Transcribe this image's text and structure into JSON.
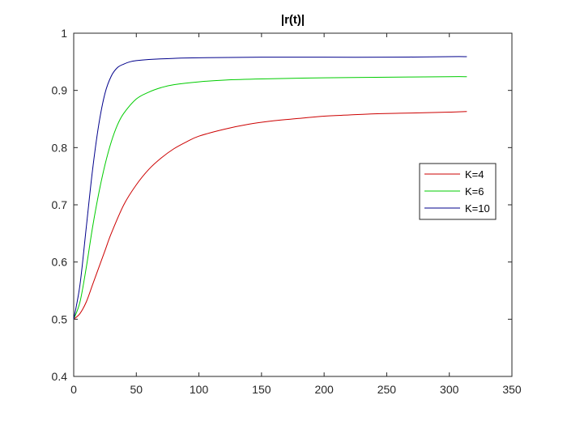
{
  "chart_data": {
    "type": "line",
    "title": "|r(t)|",
    "xlabel": "",
    "ylabel": "",
    "xlim": [
      0,
      350
    ],
    "ylim": [
      0.4,
      1
    ],
    "xticks": [
      0,
      50,
      100,
      150,
      200,
      250,
      300,
      350
    ],
    "xtick_labels": [
      "0",
      "50",
      "100",
      "150",
      "200",
      "250",
      "300",
      "350"
    ],
    "yticks": [
      0.4,
      0.5,
      0.6,
      0.7,
      0.8,
      0.9,
      1
    ],
    "ytick_labels": [
      "0.4",
      "0.5",
      "0.6",
      "0.7",
      "0.8",
      "0.9",
      "1"
    ],
    "grid": false,
    "legend_position": "right",
    "series": [
      {
        "name": "K=4",
        "color": "#cc0000",
        "x": [
          0,
          5,
          10,
          15,
          20,
          25,
          30,
          40,
          50,
          60,
          70,
          80,
          90,
          100,
          120,
          140,
          160,
          180,
          200,
          220,
          240,
          260,
          280,
          300,
          314
        ],
        "y": [
          0.5,
          0.51,
          0.53,
          0.56,
          0.59,
          0.62,
          0.65,
          0.7,
          0.735,
          0.762,
          0.782,
          0.798,
          0.81,
          0.82,
          0.832,
          0.841,
          0.847,
          0.851,
          0.855,
          0.857,
          0.859,
          0.86,
          0.861,
          0.862,
          0.863
        ]
      },
      {
        "name": "K=6",
        "color": "#00cc00",
        "x": [
          0,
          5,
          10,
          15,
          20,
          25,
          30,
          35,
          40,
          50,
          60,
          70,
          80,
          100,
          120,
          150,
          200,
          250,
          300,
          314
        ],
        "y": [
          0.5,
          0.53,
          0.59,
          0.66,
          0.72,
          0.77,
          0.81,
          0.84,
          0.86,
          0.885,
          0.897,
          0.905,
          0.91,
          0.915,
          0.918,
          0.92,
          0.922,
          0.923,
          0.924,
          0.924
        ]
      },
      {
        "name": "K=10",
        "color": "#00008b",
        "x": [
          0,
          5,
          10,
          15,
          20,
          25,
          30,
          35,
          40,
          45,
          50,
          60,
          80,
          100,
          150,
          200,
          250,
          300,
          314
        ],
        "y": [
          0.5,
          0.56,
          0.66,
          0.76,
          0.84,
          0.895,
          0.925,
          0.94,
          0.946,
          0.95,
          0.952,
          0.954,
          0.956,
          0.957,
          0.958,
          0.958,
          0.958,
          0.959,
          0.959
        ]
      }
    ]
  }
}
